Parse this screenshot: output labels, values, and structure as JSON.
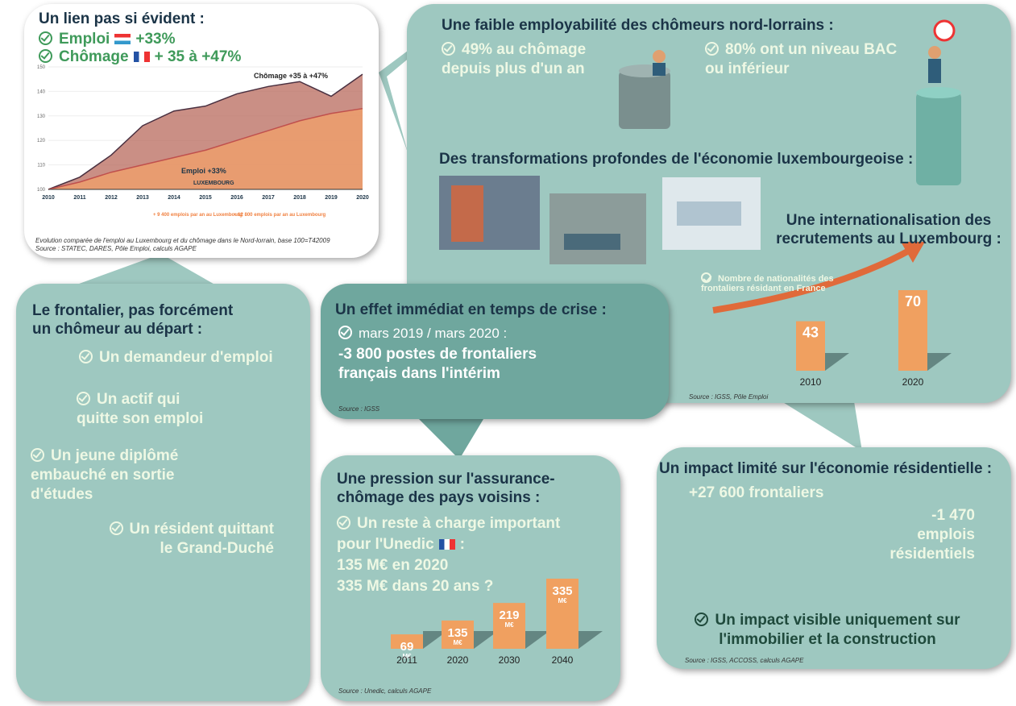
{
  "chart_data": [
    {
      "type": "line",
      "categories": [
        "2010",
        "2011",
        "2012",
        "2013",
        "2014",
        "2015",
        "2016",
        "2017",
        "2018",
        "2019",
        "2020"
      ],
      "series": [
        {
          "color": "#b86a5c",
          "values": [
            100,
            105,
            114,
            126,
            132,
            134,
            139,
            142,
            144,
            138,
            147
          ]
        },
        {
          "color": "#f2a06a",
          "values": [
            100,
            103,
            107,
            110,
            113,
            116,
            120,
            124,
            128,
            131,
            133
          ]
        }
      ],
      "ylim": [
        100,
        150
      ],
      "yticks": [
        100,
        110,
        120,
        130,
        140,
        150
      ],
      "annotations": [
        "Chômage +35 à +47%",
        "Emploi +33%",
        "LUXEMBOURG",
        "+ 9 400 emplois par an au Luxembourg",
        "+ 12 800 emplois par an au Luxembourg"
      ]
    },
    {
      "type": "bar",
      "title": "Nombre de nationalités des frontaliers résidant en France",
      "categories": [
        "2010",
        "2020"
      ],
      "values": [
        43,
        70
      ],
      "color": "#f0a060",
      "ylim": [
        0,
        70
      ]
    },
    {
      "type": "bar",
      "categories": [
        "2011",
        "2020",
        "2030",
        "2040"
      ],
      "values": [
        69,
        135,
        219,
        335
      ],
      "unit": "M€",
      "color": "#f0a060",
      "ylim": [
        0,
        335
      ]
    }
  ],
  "link": {
    "title": "Un lien pas si évident :",
    "items": [
      {
        "label": "Emploi",
        "value": "+33%"
      },
      {
        "label": "Chômage",
        "value": "+ 35 à +47%"
      }
    ],
    "caption": "Evolution comparée de l'emploi au Luxembourg et du chômage dans le Nord-lorrain, base 100=T42009",
    "source": "Source : STATEC, DARES, Pôle Emploi, calculs AGAPE"
  },
  "employability": {
    "title": "Une faible employabilité des chômeurs nord-lorrains :",
    "items": [
      "49% au chômage depuis plus d'un an",
      "80% ont un niveau BAC ou inférieur"
    ],
    "cylinders": [
      "49%",
      "80%"
    ]
  },
  "transformations": {
    "title": "Des transformations profondes de l'économie luxembourgeoise :"
  },
  "internationalisation": {
    "title": "Une internationalisation des recrutements au Luxembourg :",
    "source": "Source : IGSS, Pôle Emploi"
  },
  "crisis": {
    "title": "Un effet immédiat en temps de crise :",
    "period": "mars 2019 / mars 2020 :",
    "text": "-3 800 postes de frontaliers français dans l'intérim",
    "source": "Source : IGSS"
  },
  "frontalier": {
    "title": "Le frontalier, pas forcément un chômeur au départ :",
    "items": [
      "Un demandeur d'emploi",
      "Un actif qui quitte son emploi",
      "Un jeune diplômé embauché en sortie d'études",
      "Un résident quittant le Grand-Duché"
    ]
  },
  "pression": {
    "title": "Une pression sur l'assurance-chômage des pays voisins :",
    "lead": "Un reste à charge important",
    "lead2": "pour l'Unedic",
    "colon": ":",
    "lines": [
      "135 M€ en 2020",
      "335 M€ dans 20 ans ?"
    ],
    "source": "Source : Unedic, calculs AGAPE"
  },
  "impact": {
    "title": "Un impact limité sur l'économie résidentielle :",
    "left": "+27 600 frontaliers",
    "right": "-1 470 emplois résidentiels",
    "conclusion": "Un impact visible uniquement sur l'immobilier et la construction",
    "source": "Source : IGSS, ACCOSS, calculs AGAPE"
  }
}
